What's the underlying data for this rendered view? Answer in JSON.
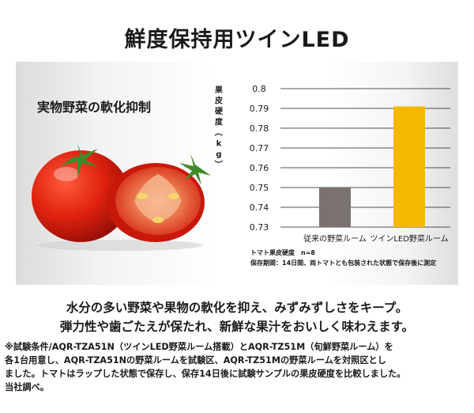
{
  "title": "鮮度保持用ツインLED",
  "panel_title": "実物野菜の軟化抑制",
  "chart_data": {
    "type": "bar",
    "ylabel": "果皮硬度（kg）",
    "categories": [
      "従来の野菜ルーム",
      "ツインLED野菜ルーム"
    ],
    "values": [
      0.75,
      0.791
    ],
    "ylim": [
      0.73,
      0.8
    ],
    "yticks": [
      "0.8",
      "0.79",
      "0.78",
      "0.77",
      "0.76",
      "0.75",
      "0.74",
      "0.73"
    ],
    "grid": true,
    "bar_colors": [
      "#7a726e",
      "#f5b800"
    ]
  },
  "chart_notes": {
    "line1": "トマト果皮硬度　n=8",
    "line2": "保存期間：14日間、両トマトとも包装された状態で保存後に測定"
  },
  "description": {
    "line1": "水分の多い野菜や果物の軟化を抑え、みずみずしさをキープ。",
    "line2": "弾力性や歯ごたえが保たれ、新鮮な果汁をおいしく味わえます。"
  },
  "footnote": {
    "line1": "※試験条件/AQR-TZA51N（ツインLED野菜ルーム搭載）とAQR-TZ51M（旬鮮野菜ルーム）を",
    "line2": "各1台用意し、AQR-TZA51Nの野菜ルームを試験区、AQR-TZ51Mの野菜ルームを対照区とし",
    "line3": "ました。トマトはラップした状態で保存し、保存14日後に試験サンプルの果皮硬度を比較しました。",
    "line4": "当社調べ。"
  }
}
